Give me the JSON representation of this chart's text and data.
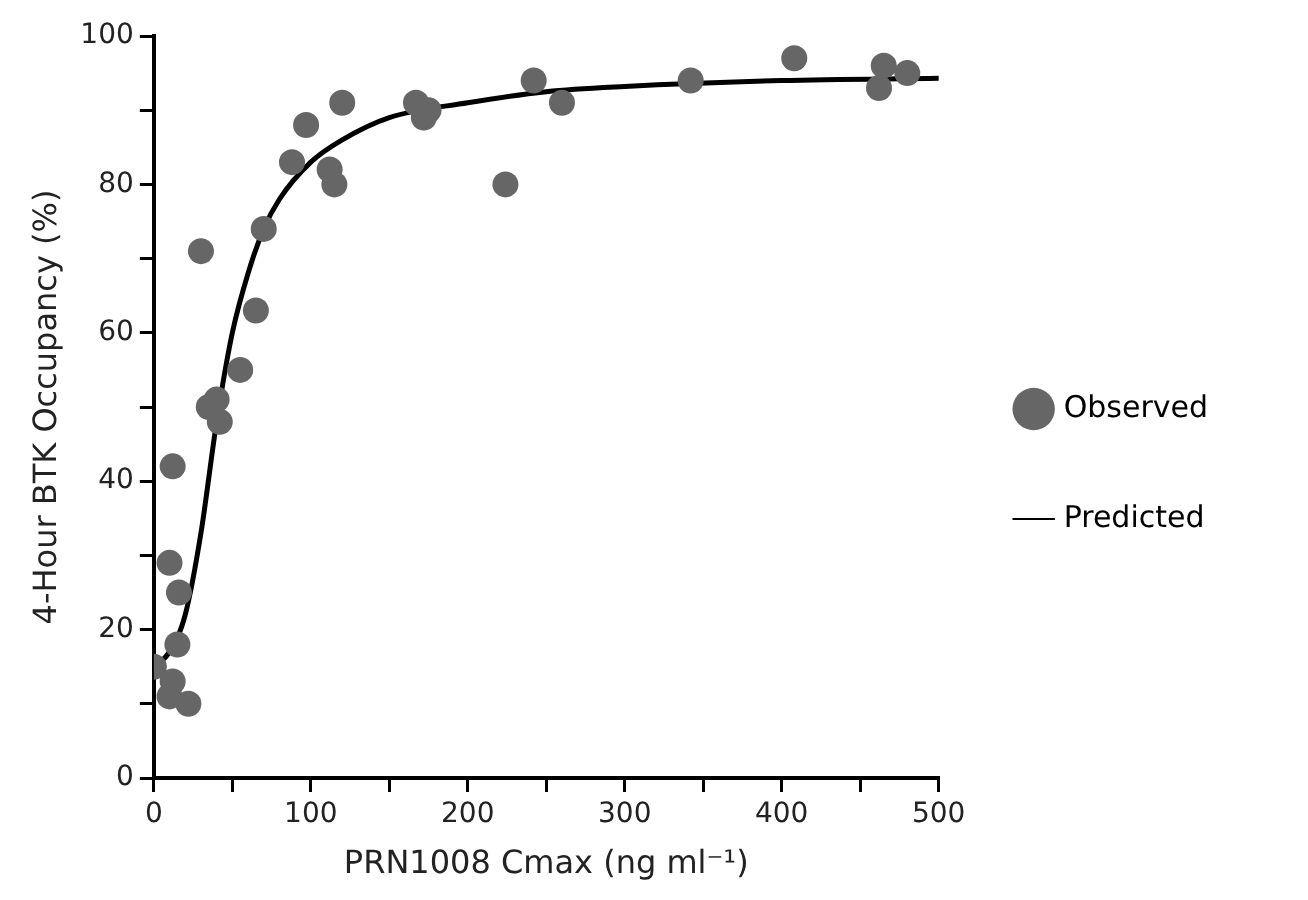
{
  "chart_data": {
    "type": "scatter",
    "xlabel": "PRN1008 Cmax (ng ml⁻¹)",
    "ylabel": "4-Hour BTK Occupancy (%)",
    "xlim": [
      0,
      500
    ],
    "xticks": [
      0,
      {
        "value": 50,
        "label": null
      },
      100,
      {
        "value": 150,
        "label": null
      },
      200,
      {
        "value": 250,
        "label": null
      },
      300,
      {
        "value": 350,
        "label": null
      },
      400,
      {
        "value": 450,
        "label": null
      },
      500
    ],
    "ylim": [
      0,
      100
    ],
    "yticks": [
      0,
      {
        "value": 10,
        "label": null
      },
      20,
      {
        "value": 30,
        "label": null
      },
      40,
      {
        "value": 50,
        "label": null
      },
      60,
      {
        "value": 70,
        "label": null
      },
      80,
      {
        "value": 90,
        "label": null
      },
      100
    ],
    "grid": false,
    "legend": "right",
    "series": [
      {
        "name": "Observed",
        "marker": "circle",
        "color": "#666666",
        "x": [
          0,
          10,
          12,
          10,
          12,
          16,
          15,
          22,
          30,
          35,
          40,
          42,
          55,
          65,
          70,
          88,
          97,
          112,
          115,
          120,
          167,
          172,
          175,
          224,
          242,
          260,
          342,
          408,
          462,
          465,
          480
        ],
        "values": [
          15,
          11,
          13,
          29,
          42,
          25,
          18,
          10,
          71,
          50,
          51,
          48,
          55,
          63,
          74,
          83,
          88,
          82,
          80,
          91,
          91,
          89,
          90,
          80,
          94,
          91,
          94,
          97,
          93,
          96,
          95
        ]
      },
      {
        "name": "Predicted",
        "type": "line",
        "marker": "none",
        "line_style": "solid",
        "color": "#000000",
        "x": [
          0,
          10,
          20,
          30,
          40,
          50,
          60,
          70,
          80,
          100,
          120,
          150,
          200,
          250,
          300,
          400,
          500
        ],
        "values": [
          15,
          17,
          22,
          33,
          48,
          60,
          68,
          74,
          78,
          83,
          86,
          89,
          91,
          92.5,
          93.2,
          94,
          94.3
        ]
      }
    ]
  }
}
